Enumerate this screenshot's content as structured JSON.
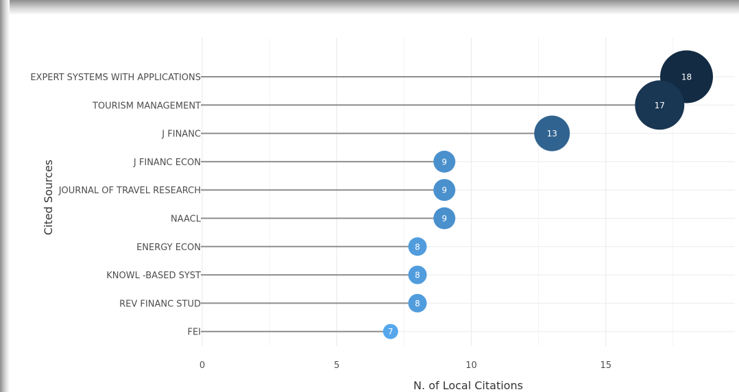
{
  "chart_data": {
    "type": "scatter",
    "subtype": "lollipop",
    "xlabel": "N. of Local Citations",
    "ylabel": "Cited Sources",
    "xlim": [
      0,
      19.5
    ],
    "xticks": [
      0,
      5,
      10,
      15
    ],
    "grid": true,
    "categories": [
      "EXPERT SYSTEMS WITH APPLICATIONS",
      "TOURISM MANAGEMENT",
      "J  FINANC",
      "J  FINANC  ECON",
      "JOURNAL OF TRAVEL RESEARCH",
      "NAACL",
      "ENERGY ECON",
      "KNOWL -BASED SYST",
      "REV  FINANC  STUD",
      "FEI"
    ],
    "values": [
      18,
      17,
      13,
      9,
      9,
      9,
      8,
      8,
      8,
      7
    ],
    "colors": {
      "low": "#56a7ec",
      "high": "#132b43",
      "stem": "#8c8c8c",
      "grid": "#ebebeb"
    }
  }
}
